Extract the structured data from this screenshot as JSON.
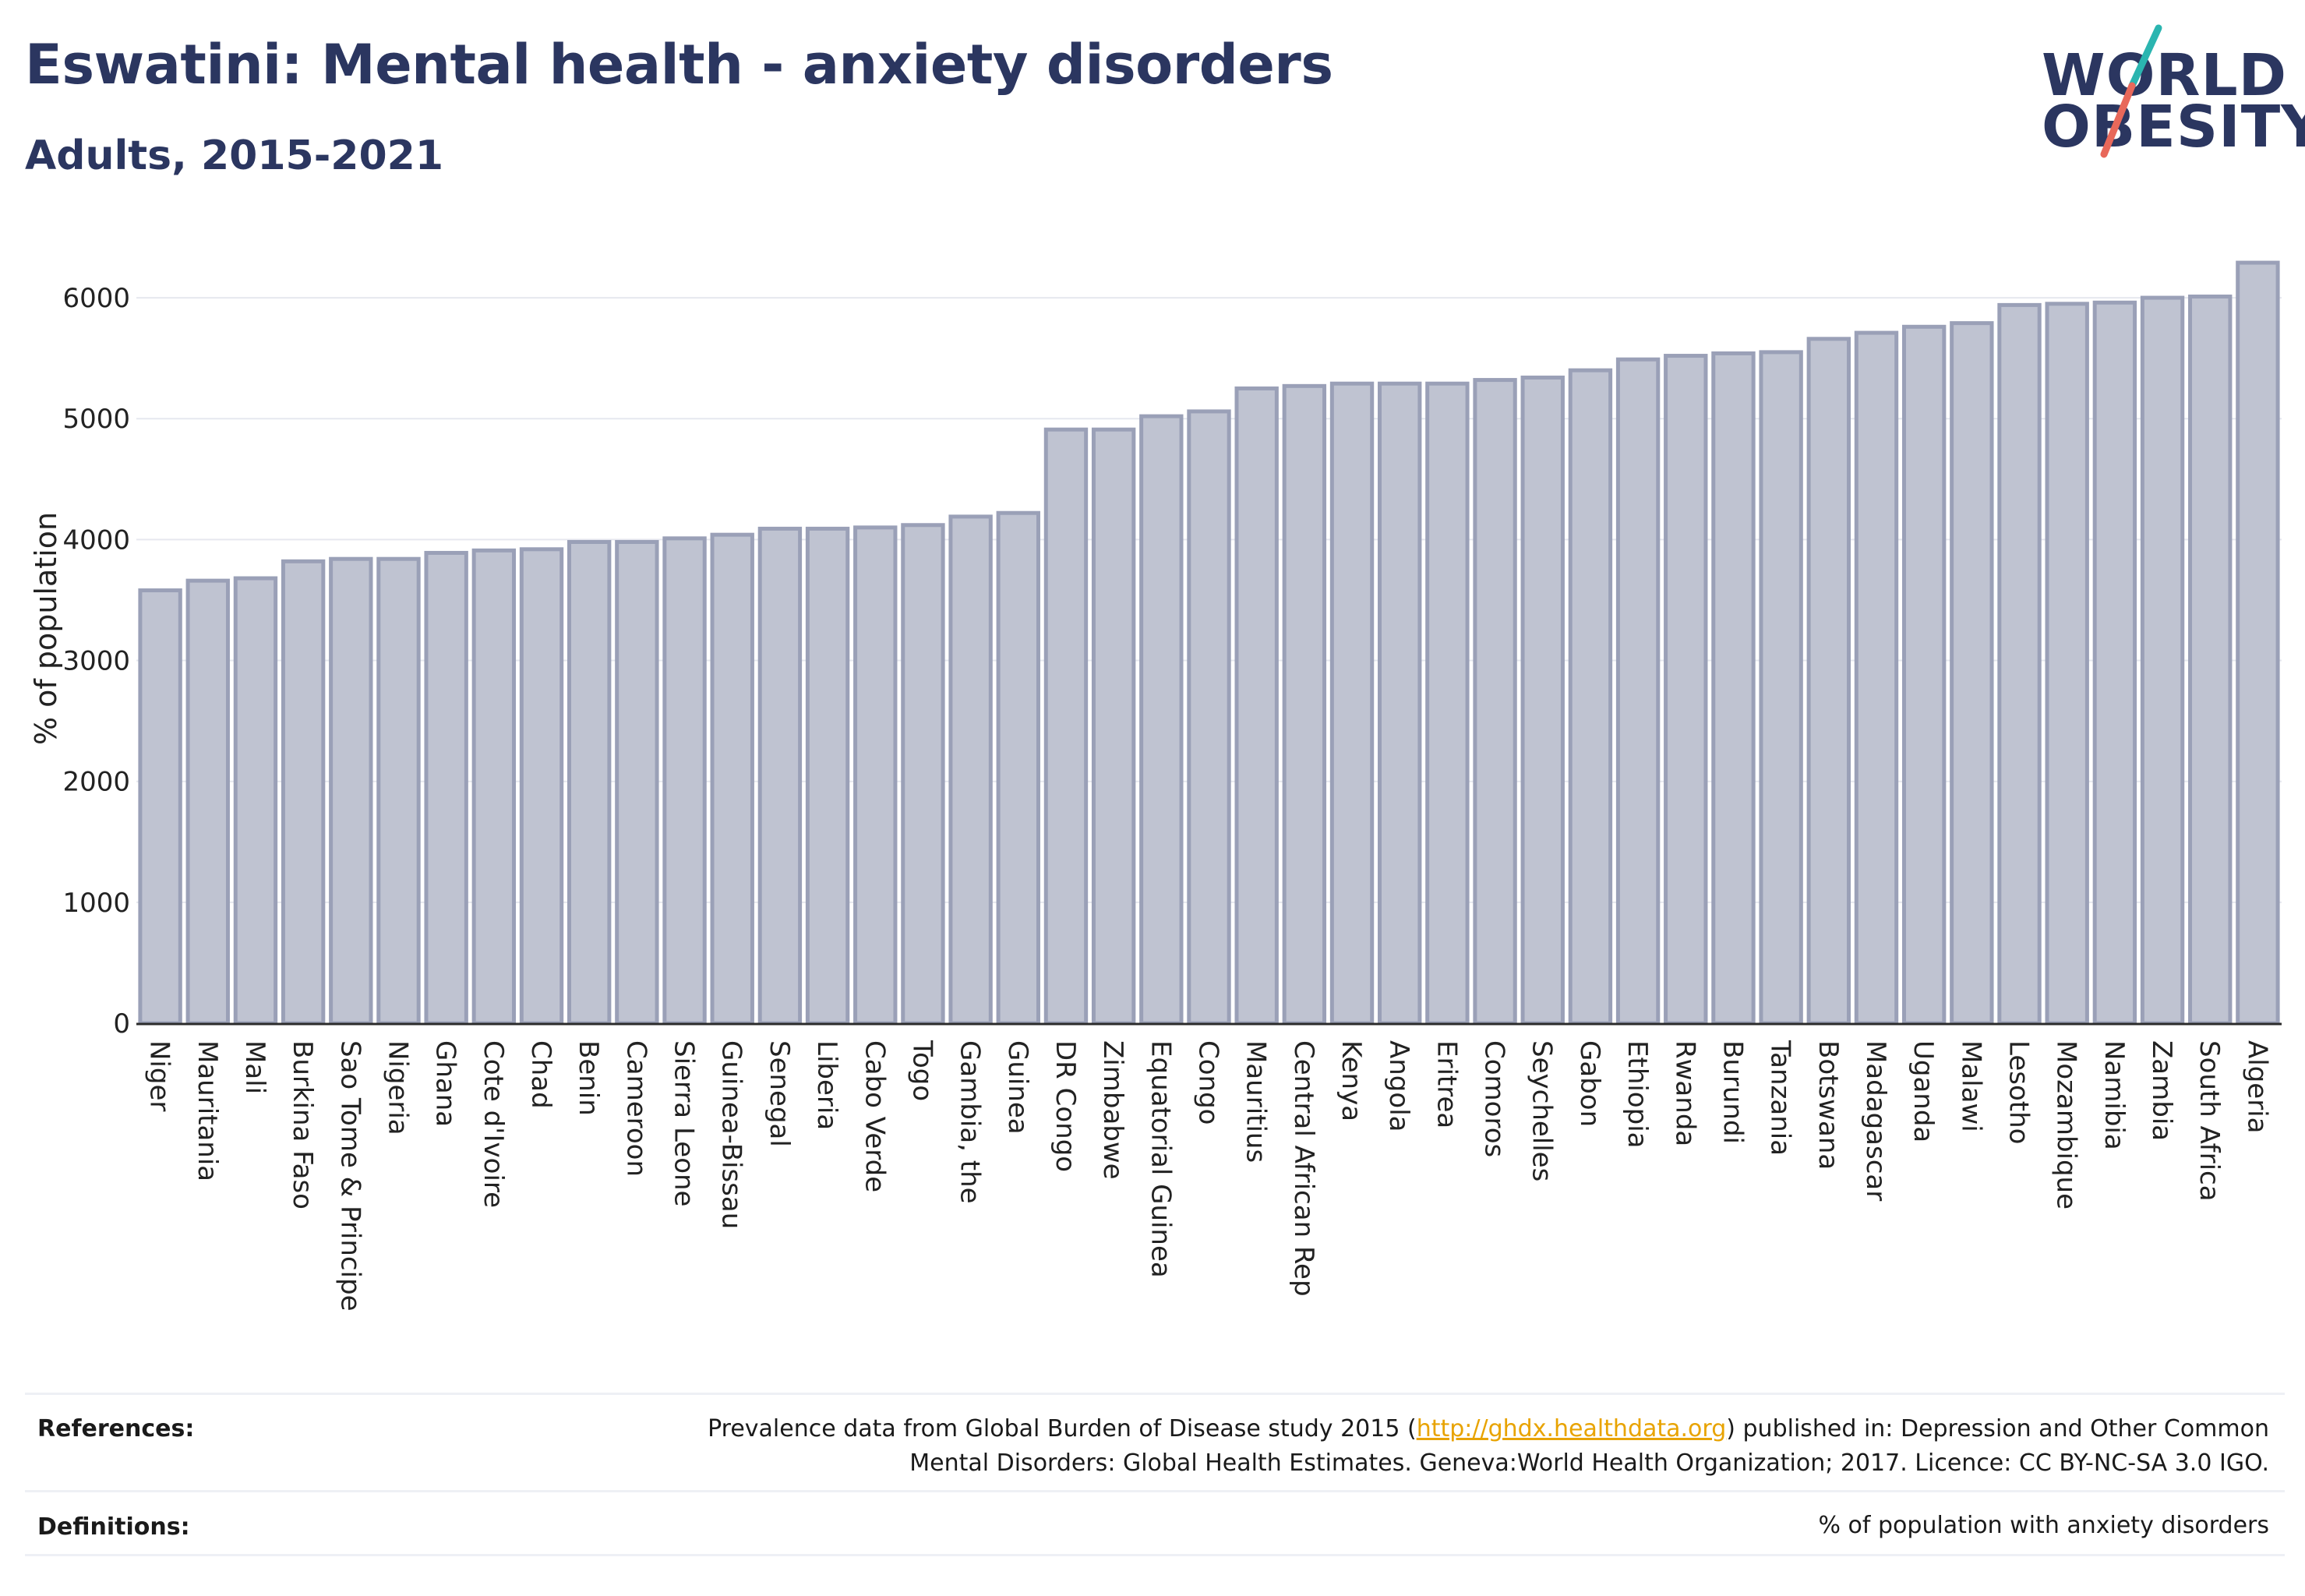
{
  "header": {
    "title": "Eswatini: Mental health - anxiety disorders",
    "subtitle": "Adults, 2015-2021"
  },
  "logo": {
    "line1": "WORLD",
    "line2": "OBESITY",
    "colors": {
      "text": "#2b3660",
      "slash_top": "#2bb5b0",
      "slash_bottom": "#e8685a"
    }
  },
  "chart_data": {
    "type": "bar",
    "ylabel": "% of population",
    "xlabel": "",
    "ylim": [
      0,
      6400
    ],
    "yticks": [
      0,
      1000,
      2000,
      3000,
      4000,
      5000,
      6000
    ],
    "grid": true,
    "bar_color": "#bfc3d1",
    "bar_edge_color": "#9aa0b7",
    "categories": [
      "Niger",
      "Mauritania",
      "Mali",
      "Burkina Faso",
      "Sao Tome & Principe",
      "Nigeria",
      "Ghana",
      "Cote d'Ivoire",
      "Chad",
      "Benin",
      "Cameroon",
      "Sierra Leone",
      "Guinea-Bissau",
      "Senegal",
      "Liberia",
      "Cabo Verde",
      "Togo",
      "Gambia, the",
      "Guinea",
      "DR Congo",
      "Zimbabwe",
      "Equatorial Guinea",
      "Congo",
      "Mauritius",
      "Central African Rep",
      "Kenya",
      "Angola",
      "Eritrea",
      "Comoros",
      "Seychelles",
      "Gabon",
      "Ethiopia",
      "Rwanda",
      "Burundi",
      "Tanzania",
      "Botswana",
      "Madagascar",
      "Uganda",
      "Malawi",
      "Lesotho",
      "Mozambique",
      "Namibia",
      "Zambia",
      "South Africa",
      "Algeria"
    ],
    "values": [
      3580,
      3660,
      3680,
      3820,
      3840,
      3840,
      3890,
      3910,
      3920,
      3980,
      3980,
      4010,
      4040,
      4090,
      4090,
      4100,
      4120,
      4190,
      4220,
      4910,
      4910,
      5020,
      5060,
      5250,
      5270,
      5290,
      5290,
      5290,
      5320,
      5340,
      5400,
      5490,
      5520,
      5540,
      5550,
      5660,
      5710,
      5760,
      5790,
      5940,
      5950,
      5960,
      6000,
      6010,
      6290
    ]
  },
  "footer": {
    "references_label": "References:",
    "references_text_pre": "Prevalence data from Global Burden of Disease study 2015 (",
    "references_link": "http://ghdx.healthdata.org",
    "references_text_post": ") published in: Depression and Other Common",
    "references_line2": "Mental Disorders: Global Health Estimates. Geneva:World Health Organization; 2017. Licence: CC BY-NC-SA 3.0 IGO.",
    "definitions_label": "Definitions:",
    "definitions_text": "% of population with anxiety disorders"
  }
}
